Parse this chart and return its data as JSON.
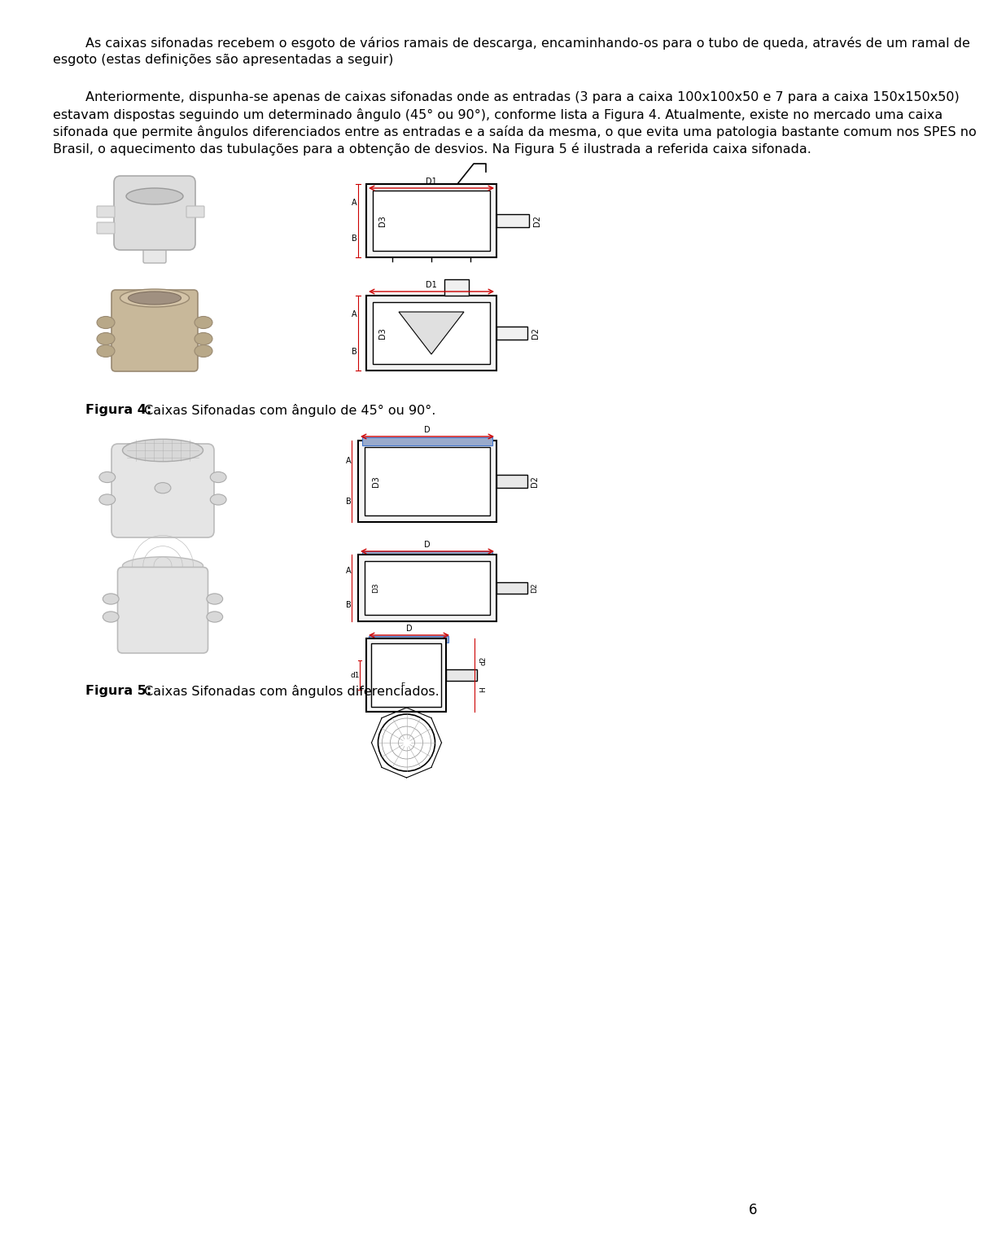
{
  "background_color": "#ffffff",
  "page_number": "6",
  "paragraph1": "As caixas sifonadas recebem o esgoto de vários ramais de descarga, encaminhando-os para o tubo de queda, através de um ramal de esgoto (estas definições são apresentadas a seguir)",
  "paragraph2": "Anteriormente, dispunha-se apenas de caixas sifonadas onde as entradas (3 para a caixa 100x100x50 e 7 para a caixa 150x150x50) estavam dispostas seguindo um determinado ângulo (45° ou 90°), conforme lista a Figura 4. Atualmente, existe no mercado uma caixa sifonada que permite ângulos diferenciados entre as entradas e a saída da mesma, o que evita uma patologia bastante comum nos SPES no Brasil, o aquecimento das tubulações para a obtenção de desvios. Na Figura 5 é ilustrada a referida caixa sifonada.",
  "figura4_caption_bold": "Figura 4:",
  "figura4_caption_regular": " Caixas Sifonadas com ângulo de 45° ou 90°.",
  "figura5_caption_bold": "Figura 5:",
  "figura5_caption_regular": " Caixas Sifonadas com ângulos diferenciados.",
  "text_color": "#000000",
  "font_size_body": 11.5,
  "font_size_caption": 11.5
}
